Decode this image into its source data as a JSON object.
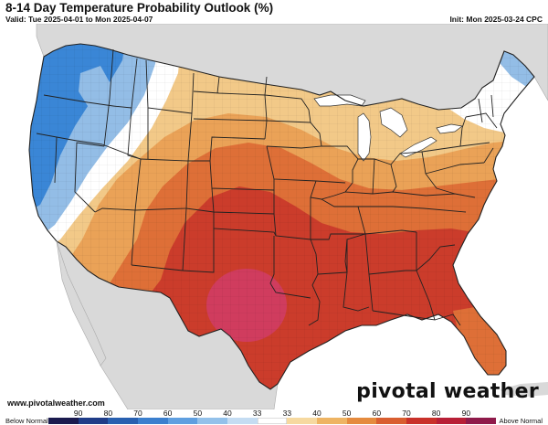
{
  "header": {
    "title": "8-14 Day Temperature Probability Outlook (%)",
    "valid": "Valid: Tue 2025-04-01 to Mon 2025-04-07",
    "init": "Init: Mon 2025-03-24 CPC"
  },
  "footer": {
    "website": "www.pivotalweather.com",
    "logo": "pivotal weather"
  },
  "colorbar": {
    "below_label": "Below Normal",
    "above_label": "Above Normal",
    "tick_labels": [
      "90",
      "80",
      "70",
      "60",
      "50",
      "40",
      "33",
      "33",
      "40",
      "50",
      "60",
      "70",
      "80",
      "90"
    ],
    "colors": [
      "#1a1a4e",
      "#1f3c88",
      "#2860b0",
      "#3b7fce",
      "#5f9fe0",
      "#93c1ea",
      "#c4dcf2",
      "#ffffff",
      "#f6d9a0",
      "#eeb463",
      "#e58b3e",
      "#d95e30",
      "#c9312a",
      "#b81f36",
      "#8f1a4a"
    ]
  },
  "map": {
    "region": "Contiguous United States",
    "category_colors": {
      "below_40": "#3a86d6",
      "below_33": "#93bde6",
      "near_normal": "#ffffff",
      "above_33": "#f2c988",
      "above_40": "#eaa257",
      "above_50": "#de6f37",
      "above_60": "#cb3c2b",
      "above_70": "#d03c5e"
    }
  }
}
